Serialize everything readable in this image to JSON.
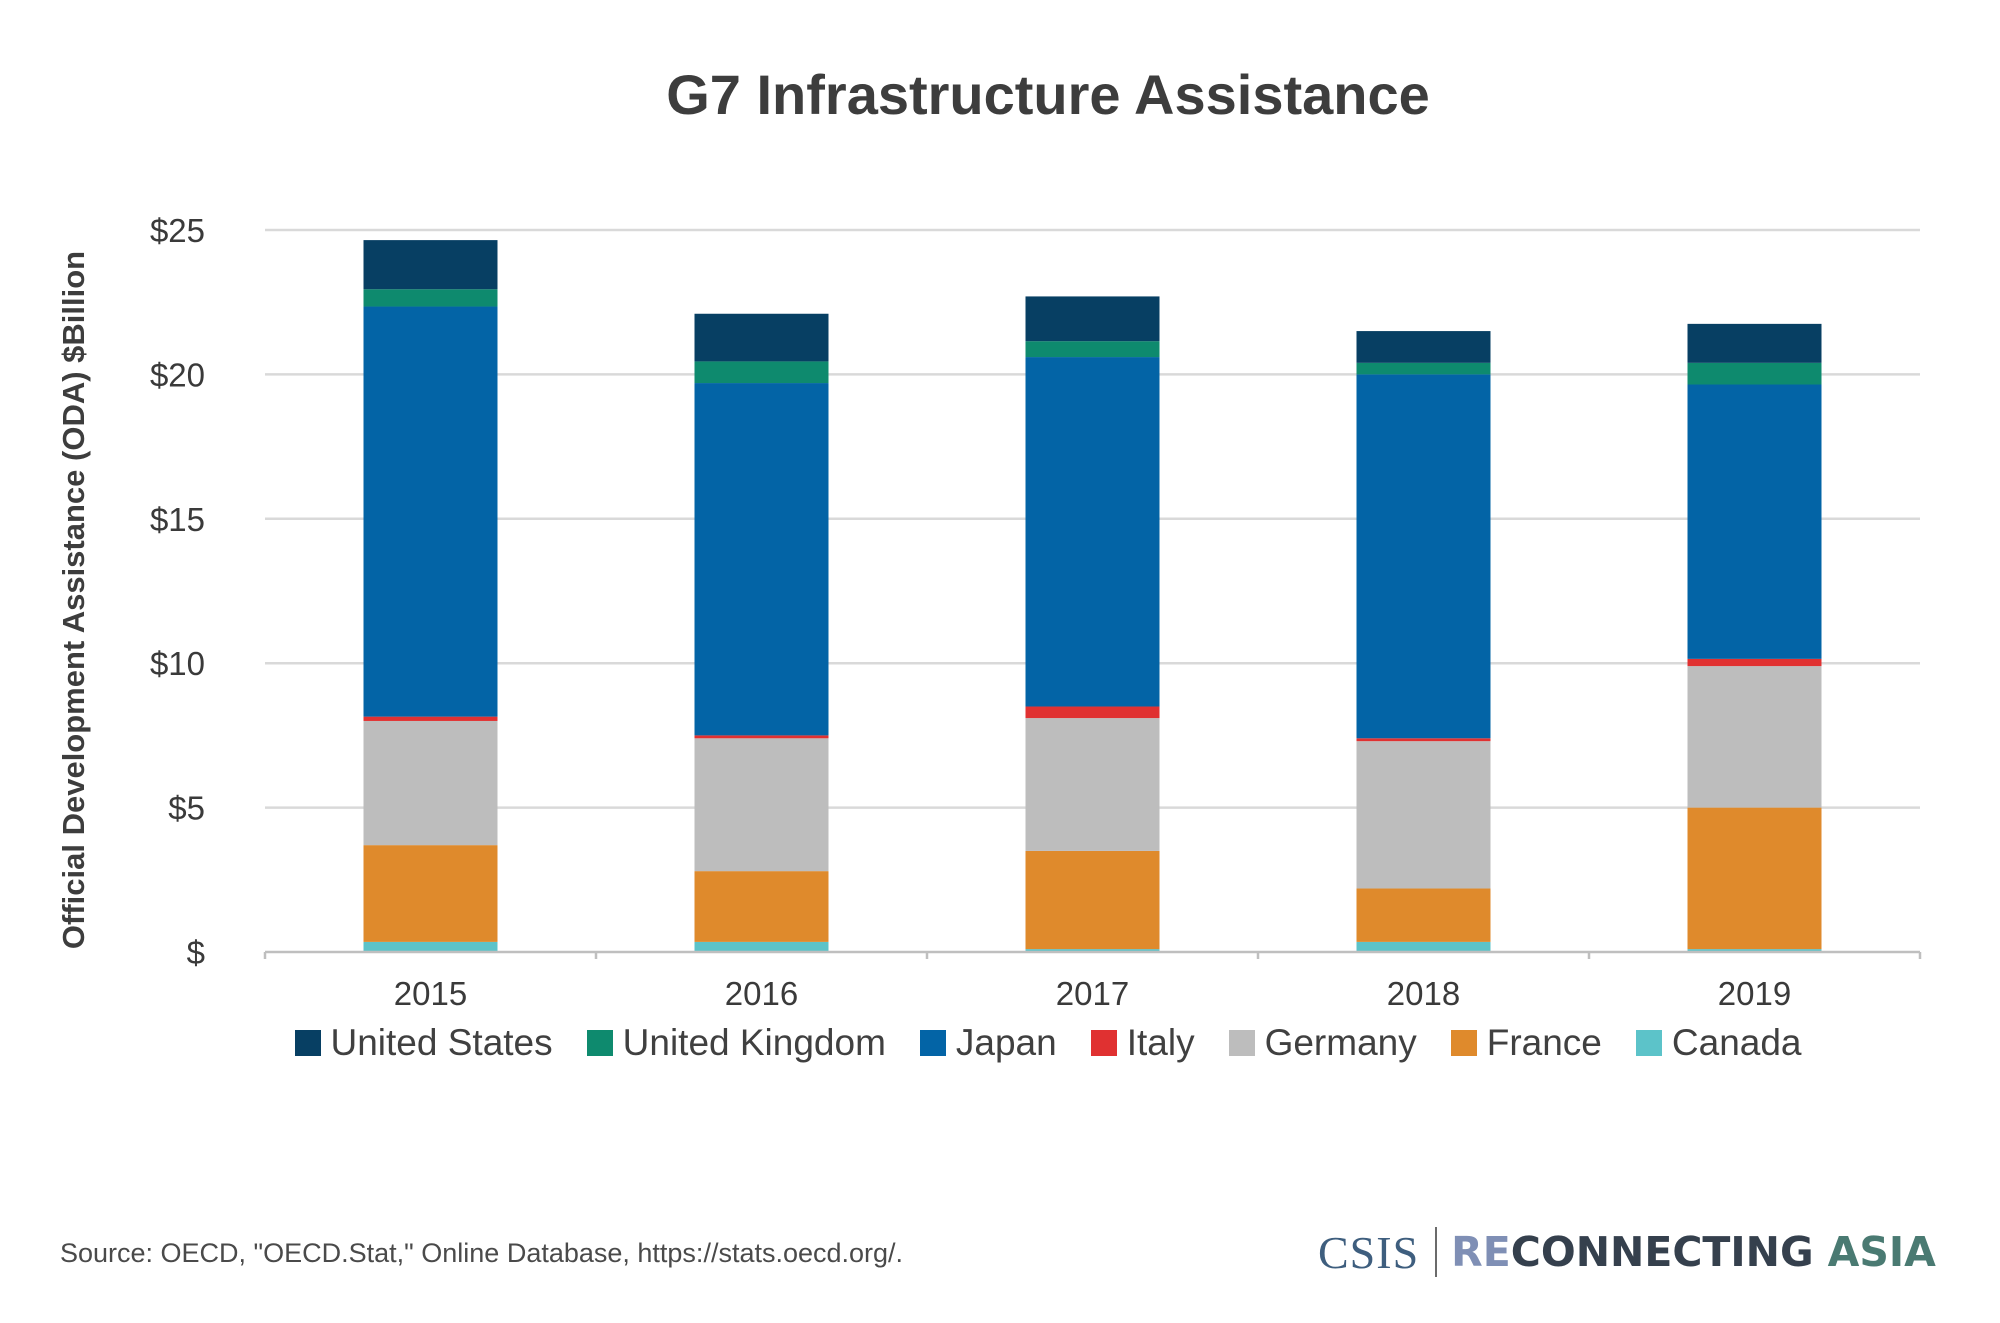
{
  "chart_data": {
    "type": "bar",
    "stacked": true,
    "title": "G7 Infrastructure Assistance",
    "ylabel": "Official Development Assistance (ODA) $Billion",
    "xlabel": "",
    "categories": [
      "2015",
      "2016",
      "2017",
      "2018",
      "2019"
    ],
    "ylim": [
      0,
      25
    ],
    "yticks": [
      0,
      5,
      10,
      15,
      20,
      25
    ],
    "ytick_labels": [
      "$",
      "$5",
      "$10",
      "$15",
      "$20",
      "$25"
    ],
    "grid": true,
    "legend_position": "bottom",
    "series": [
      {
        "name": "Canada",
        "color": "#5cc3c9",
        "values": [
          0.35,
          0.35,
          0.1,
          0.35,
          0.1
        ]
      },
      {
        "name": "France",
        "color": "#df8a2c",
        "values": [
          3.35,
          2.45,
          3.4,
          1.85,
          4.9
        ]
      },
      {
        "name": "Germany",
        "color": "#bdbdbd",
        "values": [
          4.3,
          4.6,
          4.6,
          5.1,
          4.9
        ]
      },
      {
        "name": "Italy",
        "color": "#e03131",
        "values": [
          0.15,
          0.1,
          0.4,
          0.1,
          0.25
        ]
      },
      {
        "name": "Japan",
        "color": "#0364a6",
        "values": [
          14.2,
          12.2,
          12.1,
          12.6,
          9.5
        ]
      },
      {
        "name": "United Kingdom",
        "color": "#0e8a6e",
        "values": [
          0.6,
          0.75,
          0.55,
          0.4,
          0.75
        ]
      },
      {
        "name": "United States",
        "color": "#073f63",
        "values": [
          1.7,
          1.65,
          1.55,
          1.1,
          1.35
        ]
      }
    ],
    "legend_order": [
      "United States",
      "United Kingdom",
      "Japan",
      "Italy",
      "Germany",
      "France",
      "Canada"
    ]
  },
  "footer": {
    "source": "Source: OECD, \"OECD.Stat,\" Online Database, https://stats.oecd.org/."
  },
  "brand": {
    "csis": "CSIS",
    "re": "RE",
    "connecting": "CONNECTING",
    "asia": "ASIA"
  },
  "colors": {
    "grid": "#d9d9d9",
    "axis": "#bfbfbf",
    "text": "#3a3a3a"
  }
}
